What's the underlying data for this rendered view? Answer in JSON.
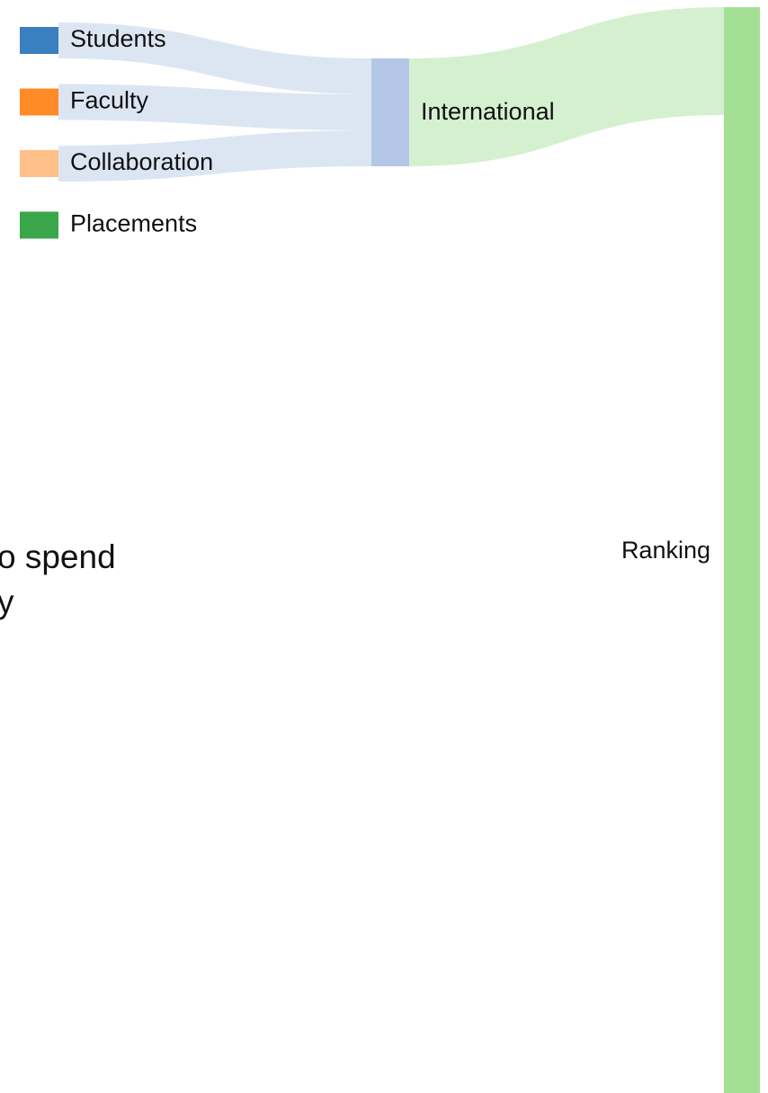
{
  "chart_data": {
    "type": "sankey",
    "legend": [
      {
        "name": "Students",
        "color": "#3a7fbf"
      },
      {
        "name": "Faculty",
        "color": "#ff8a26"
      },
      {
        "name": "Collaboration",
        "color": "#ffbf88"
      },
      {
        "name": "Placements",
        "color": "#3aa64a"
      }
    ],
    "nodes": [
      {
        "name": "International",
        "color": "#b4c7e7"
      },
      {
        "name": "Ranking",
        "color": "#a3e095"
      }
    ],
    "links": [
      {
        "source": "Students",
        "target": "International",
        "value": 40,
        "color": "#dce6f3"
      },
      {
        "source": "Faculty",
        "target": "International",
        "value": 40,
        "color": "#dce6f3"
      },
      {
        "source": "Collaboration",
        "target": "International",
        "value": 40,
        "color": "#dce6f3"
      },
      {
        "source": "International",
        "target": "Ranking",
        "value": 120,
        "color": "#d5f0cf"
      }
    ],
    "annotations": [
      "o spend",
      "y"
    ]
  }
}
